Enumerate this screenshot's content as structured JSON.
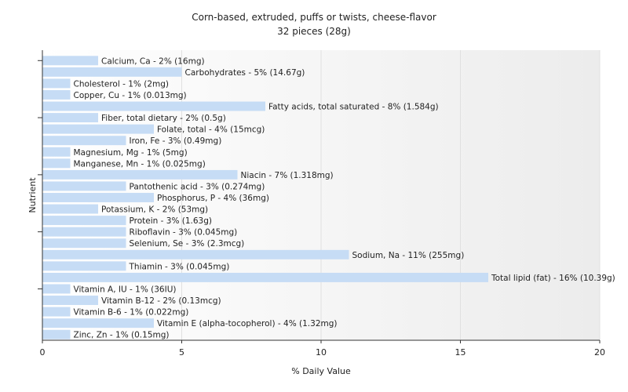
{
  "chart_data": {
    "type": "bar",
    "orientation": "horizontal",
    "title": "Corn-based, extruded, puffs or twists, cheese-flavor",
    "subtitle": "32 pieces (28g)",
    "xlabel": "% Daily Value",
    "ylabel": "Nutrient",
    "xlim": [
      0,
      20
    ],
    "xticks": [
      0,
      5,
      10,
      15,
      20
    ],
    "grid": true,
    "bar_color": "#c6dcf5",
    "bars": [
      {
        "label": "Calcium, Ca - 2% (16mg)",
        "value": 2
      },
      {
        "label": "Carbohydrates - 5% (14.67g)",
        "value": 5
      },
      {
        "label": "Cholesterol - 1% (2mg)",
        "value": 1
      },
      {
        "label": "Copper, Cu - 1% (0.013mg)",
        "value": 1
      },
      {
        "label": "Fatty acids, total saturated - 8% (1.584g)",
        "value": 8
      },
      {
        "label": "Fiber, total dietary - 2% (0.5g)",
        "value": 2
      },
      {
        "label": "Folate, total - 4% (15mcg)",
        "value": 4
      },
      {
        "label": "Iron, Fe - 3% (0.49mg)",
        "value": 3
      },
      {
        "label": "Magnesium, Mg - 1% (5mg)",
        "value": 1
      },
      {
        "label": "Manganese, Mn - 1% (0.025mg)",
        "value": 1
      },
      {
        "label": "Niacin - 7% (1.318mg)",
        "value": 7
      },
      {
        "label": "Pantothenic acid - 3% (0.274mg)",
        "value": 3
      },
      {
        "label": "Phosphorus, P - 4% (36mg)",
        "value": 4
      },
      {
        "label": "Potassium, K - 2% (53mg)",
        "value": 2
      },
      {
        "label": "Protein - 3% (1.63g)",
        "value": 3
      },
      {
        "label": "Riboflavin - 3% (0.045mg)",
        "value": 3
      },
      {
        "label": "Selenium, Se - 3% (2.3mcg)",
        "value": 3
      },
      {
        "label": "Sodium, Na - 11% (255mg)",
        "value": 11
      },
      {
        "label": "Thiamin - 3% (0.045mg)",
        "value": 3
      },
      {
        "label": "Total lipid (fat) - 16% (10.39g)",
        "value": 16
      },
      {
        "label": "Vitamin A, IU - 1% (36IU)",
        "value": 1
      },
      {
        "label": "Vitamin B-12 - 2% (0.13mcg)",
        "value": 2
      },
      {
        "label": "Vitamin B-6 - 1% (0.022mg)",
        "value": 1
      },
      {
        "label": "Vitamin E (alpha-tocopherol) - 4% (1.32mg)",
        "value": 4
      },
      {
        "label": "Zinc, Zn - 1% (0.15mg)",
        "value": 1
      }
    ]
  }
}
